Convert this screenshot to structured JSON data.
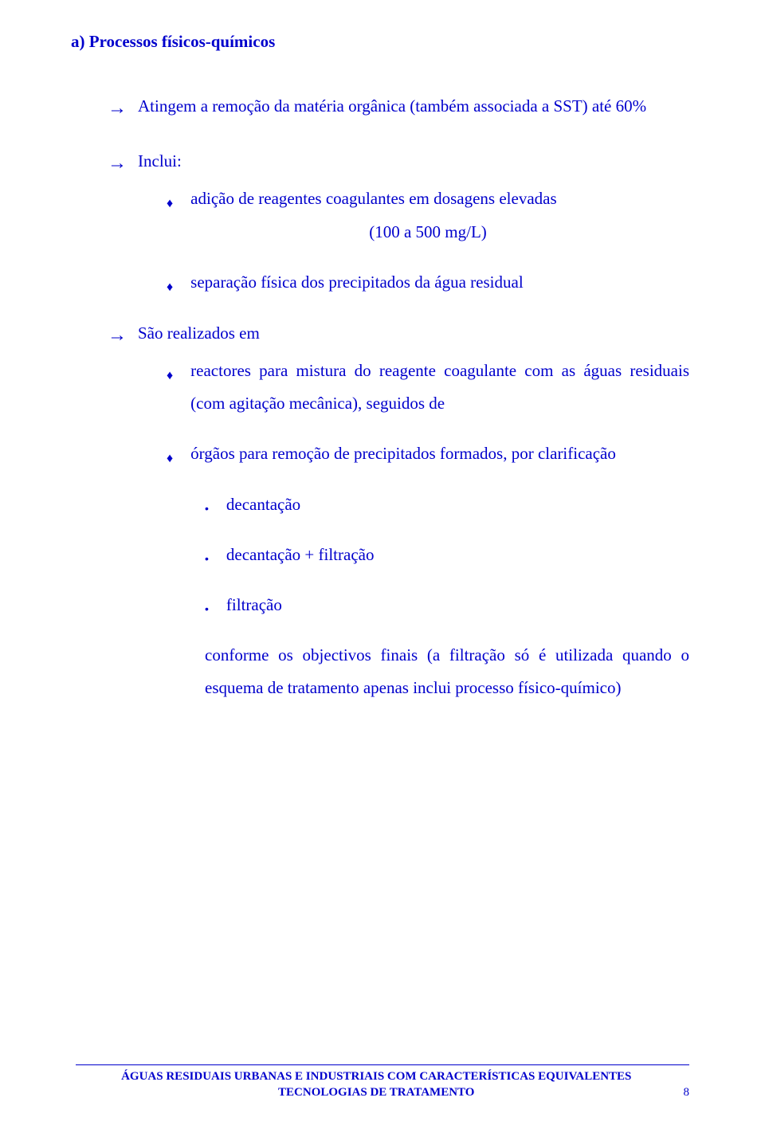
{
  "text_color": "#0000cc",
  "background_color": "#ffffff",
  "font_family": "Comic Sans MS",
  "section_title": "a)  Processos físicos-químicos",
  "items": {
    "i1": "Atingem a remoção da matéria orgânica (também associada a SST) até 60%",
    "i2": "Inclui:",
    "i2a": "adição de reagentes coagulantes em dosagens elevadas",
    "i2a_cont": "(100 a 500 mg/L)",
    "i2b": "separação física dos precipitados da água residual",
    "i3": "São realizados em",
    "i3a": "reactores para mistura do reagente coagulante com as águas residuais (com agitação mecânica), seguidos de",
    "i3b": "órgãos para remoção de precipitados formados, por clarificação",
    "i3b1": "decantação",
    "i3b2": "decantação + filtração",
    "i3b3": "filtração",
    "i3b_cont": "conforme os objectivos finais (a filtração só é utilizada quando o esquema de tratamento apenas inclui processo físico-químico)"
  },
  "markers": {
    "arrow": "→",
    "diamond": "♦",
    "bullet": "•"
  },
  "footer": {
    "line1": "ÁGUAS RESIDUAIS URBANAS E INDUSTRIAIS COM CARACTERÍSTICAS EQUIVALENTES",
    "line2": "TECNOLOGIAS DE TRATAMENTO",
    "page": "8"
  }
}
